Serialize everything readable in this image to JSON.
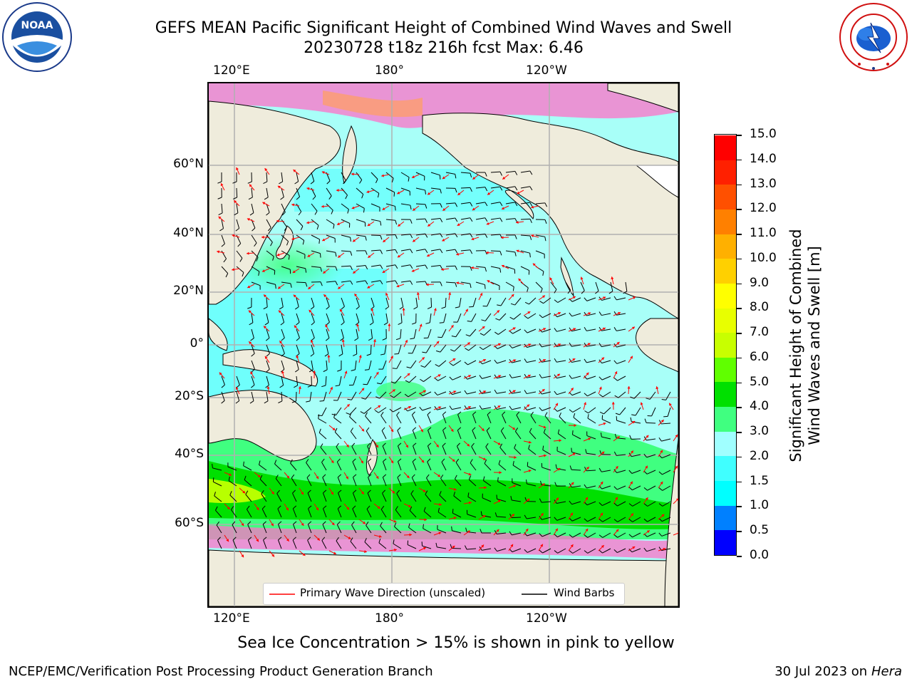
{
  "header": {
    "title_line1": "GEFS MEAN Pacific Significant Height of Combined Wind Waves and Swell",
    "title_line2": "20230728 t18z 216h fcst   Max: 6.46"
  },
  "logos": {
    "left": {
      "name": "noaa-logo",
      "text": "NOAA",
      "ring_text": "NATIONAL OCEANIC AND ATMOSPHERIC ADMINISTRATION · U.S. DEPARTMENT OF COMMERCE"
    },
    "right": {
      "name": "nws-logo",
      "ring_text": "NATIONAL WEATHER SERVICE"
    }
  },
  "map": {
    "lon_labels_top": [
      "120°E",
      "180°",
      "120°W"
    ],
    "lon_labels_bottom": [
      "120°E",
      "180°",
      "120°W"
    ],
    "lat_labels": [
      "60°N",
      "40°N",
      "20°N",
      "0°",
      "20°S",
      "40°S",
      "60°S"
    ],
    "land_color": "#efecdc",
    "grid_color": "#b0b0b0"
  },
  "legend": {
    "items": [
      {
        "label": "Primary Wave Direction (unscaled)",
        "color": "#ff0000"
      },
      {
        "label": "Wind Barbs",
        "color": "#000000"
      }
    ]
  },
  "colorbar": {
    "title_line1": "Significant Height of Combined",
    "title_line2": "Wind Waves and Swell [m]",
    "tick_labels": [
      "15.0",
      "14.0",
      "13.0",
      "12.0",
      "11.0",
      "10.0",
      "9.0",
      "8.0",
      "7.0",
      "6.0",
      "5.0",
      "4.0",
      "3.0",
      "2.0",
      "1.5",
      "1.0",
      "0.5",
      "0.0"
    ],
    "colors_bottom_to_top": [
      "#0000ff",
      "#0080ff",
      "#00ffff",
      "#40ffff",
      "#a0ffff",
      "#40ff80",
      "#00e000",
      "#60ff00",
      "#c8ff00",
      "#e8ff00",
      "#ffff00",
      "#ffd000",
      "#ffb000",
      "#ff8000",
      "#ff5000",
      "#ff2000",
      "#ff0000"
    ]
  },
  "note": "Sea Ice Concentration > 15% is shown in pink to yellow",
  "footer": {
    "left": "NCEP/EMC/Verification Post Processing Product Generation Branch",
    "right_date": "30 Jul 2023 on ",
    "right_host": "Hera"
  }
}
